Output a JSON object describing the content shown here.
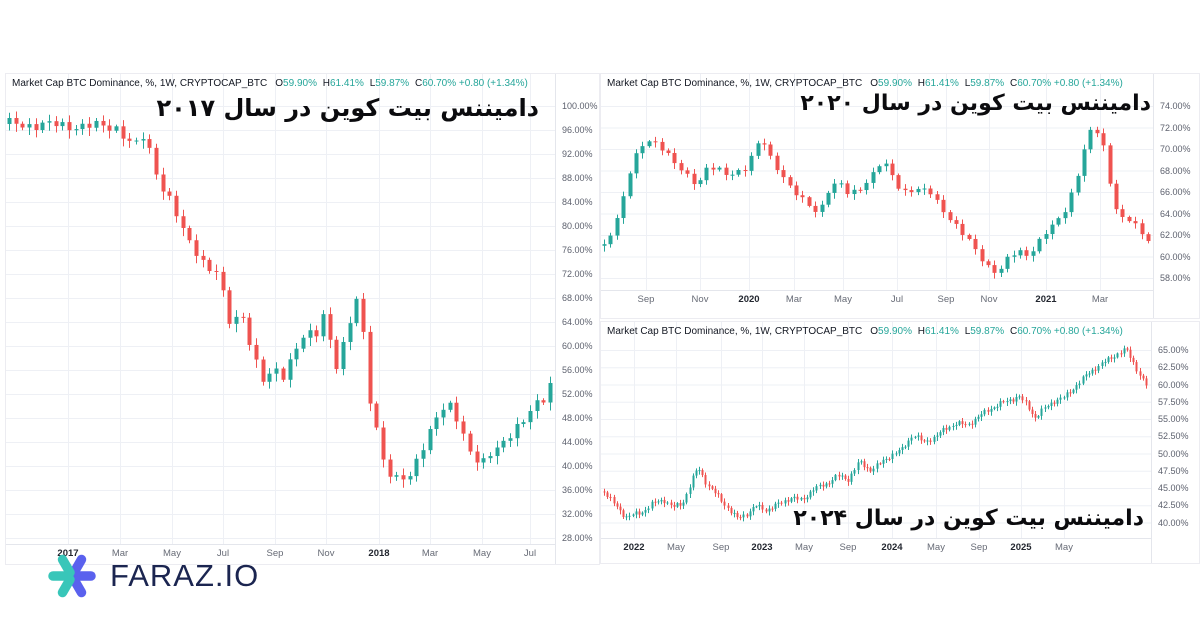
{
  "page": {
    "background": "#ffffff"
  },
  "logo": {
    "text": "FARAZ.IO",
    "icon": "asterisk-logo",
    "teal": "#38c6b9",
    "blue": "#5a61ee",
    "text_color": "#1b2550"
  },
  "colors": {
    "up": "#26a69a",
    "down": "#ef5350",
    "grid": "#eef0f5",
    "axis_text": "#5d616e",
    "header_text": "#131722",
    "title_text": "#0b0b0e"
  },
  "charts": [
    {
      "id": "btc-dominance-2017",
      "title": "دامیننس بیت کوین در سال ۲۰۱۷",
      "header": {
        "symbol": "Market Cap BTC Dominance, %, 1W, CRYPTOCAP_BTC",
        "o_label": "O",
        "o_value": "59.90%",
        "h_label": "H",
        "h_value": "61.41%",
        "l_label": "L",
        "l_value": "59.87%",
        "c_label": "C",
        "c_value": "60.70%",
        "change": "+0.80 (+1.34%)"
      }
    },
    {
      "id": "btc-dominance-2020",
      "title": "دامیننس بیت کوین در سال ۲۰۲۰",
      "header": {
        "symbol": "Market Cap BTC Dominance, %, 1W, CRYPTOCAP_BTC",
        "o_label": "O",
        "o_value": "59.90%",
        "h_label": "H",
        "h_value": "61.41%",
        "l_label": "L",
        "l_value": "59.87%",
        "c_label": "C",
        "c_value": "60.70%",
        "change": "+0.80 (+1.34%)"
      }
    },
    {
      "id": "btc-dominance-2024",
      "title": "دامیننس بیت کوین در سال ۲۰۲۴",
      "header": {
        "symbol": "Market Cap BTC Dominance, %, 1W, CRYPTOCAP_BTC",
        "o_label": "O",
        "o_value": "59.90%",
        "h_label": "H",
        "h_value": "61.41%",
        "l_label": "L",
        "l_value": "59.87%",
        "c_label": "C",
        "c_value": "60.70%",
        "change": "+0.80 (+1.34%)"
      }
    }
  ],
  "chart_data": [
    {
      "type": "candlestick",
      "title": "دامیننس بیت کوین در سال ۲۰۱۷",
      "symbol": "Market Cap BTC Dominance, %, 1W, CRYPTOCAP_BTC",
      "interval": "1W",
      "ohlc_readout": {
        "open": "59.90%",
        "high": "61.41%",
        "low": "59.87%",
        "close": "60.70%",
        "change": "+0.80 (+1.34%)"
      },
      "ylim": [
        28,
        100
      ],
      "y_ticks": [
        100,
        96,
        92,
        88,
        84,
        80,
        76,
        72,
        68,
        64,
        60,
        56,
        52,
        48,
        44,
        40,
        36,
        32,
        28
      ],
      "y_tick_suffix": "%",
      "x_ticks": [
        {
          "label": "2017",
          "t": 0.109,
          "year": true
        },
        {
          "label": "Mar",
          "t": 0.206,
          "year": false
        },
        {
          "label": "May",
          "t": 0.301,
          "year": false
        },
        {
          "label": "Jul",
          "t": 0.396,
          "year": false
        },
        {
          "label": "Sep",
          "t": 0.491,
          "year": false
        },
        {
          "label": "Nov",
          "t": 0.586,
          "year": false
        },
        {
          "label": "2018",
          "t": 0.684,
          "year": true
        },
        {
          "label": "Mar",
          "t": 0.779,
          "year": false
        },
        {
          "label": "May",
          "t": 0.874,
          "year": false
        },
        {
          "label": "Jul",
          "t": 0.963,
          "year": false
        }
      ],
      "n_candles": 82,
      "trend_keypoints": [
        [
          0,
          97
        ],
        [
          0.2,
          96.5
        ],
        [
          0.23,
          93
        ],
        [
          0.25,
          95
        ],
        [
          0.28,
          87
        ],
        [
          0.3,
          84
        ],
        [
          0.32,
          79
        ],
        [
          0.36,
          74
        ],
        [
          0.385,
          72
        ],
        [
          0.41,
          63
        ],
        [
          0.43,
          66
        ],
        [
          0.45,
          59
        ],
        [
          0.465,
          55
        ],
        [
          0.475,
          53
        ],
        [
          0.49,
          57
        ],
        [
          0.5,
          54
        ],
        [
          0.53,
          60
        ],
        [
          0.55,
          62
        ],
        [
          0.565,
          61
        ],
        [
          0.575,
          64
        ],
        [
          0.585,
          66
        ],
        [
          0.595,
          60
        ],
        [
          0.605,
          57
        ],
        [
          0.625,
          62
        ],
        [
          0.64,
          68
        ],
        [
          0.652,
          64
        ],
        [
          0.665,
          52
        ],
        [
          0.68,
          46
        ],
        [
          0.695,
          40
        ],
        [
          0.71,
          37
        ],
        [
          0.725,
          38
        ],
        [
          0.74,
          38
        ],
        [
          0.755,
          42
        ],
        [
          0.775,
          45
        ],
        [
          0.79,
          48
        ],
        [
          0.815,
          50
        ],
        [
          0.83,
          48
        ],
        [
          0.845,
          44
        ],
        [
          0.86,
          41
        ],
        [
          0.875,
          40
        ],
        [
          0.89,
          42
        ],
        [
          0.91,
          44
        ],
        [
          0.93,
          46
        ],
        [
          0.95,
          47
        ],
        [
          0.97,
          50
        ],
        [
          0.985,
          51
        ],
        [
          1,
          54
        ]
      ],
      "up_color": "#26a69a",
      "down_color": "#ef5350",
      "grid": true,
      "legend_position": "top-left"
    },
    {
      "type": "candlestick",
      "title": "دامیننس بیت کوین در سال ۲۰۲۰",
      "symbol": "Market Cap BTC Dominance, %, 1W, CRYPTOCAP_BTC",
      "interval": "1W",
      "ohlc_readout": {
        "open": "59.90%",
        "high": "61.41%",
        "low": "59.87%",
        "close": "60.70%",
        "change": "+0.80 (+1.34%)"
      },
      "ylim": [
        58,
        74
      ],
      "y_ticks": [
        74,
        72,
        70,
        68,
        66,
        64,
        62,
        60,
        58
      ],
      "y_tick_suffix": "%",
      "x_ticks": [
        {
          "label": "Sep",
          "t": 0.078,
          "year": false
        },
        {
          "label": "Nov",
          "t": 0.176,
          "year": false
        },
        {
          "label": "2020",
          "t": 0.266,
          "year": true
        },
        {
          "label": "Mar",
          "t": 0.35,
          "year": false
        },
        {
          "label": "May",
          "t": 0.44,
          "year": false
        },
        {
          "label": "Jul",
          "t": 0.538,
          "year": false
        },
        {
          "label": "Sep",
          "t": 0.629,
          "year": false
        },
        {
          "label": "Nov",
          "t": 0.707,
          "year": false
        },
        {
          "label": "2021",
          "t": 0.812,
          "year": true
        },
        {
          "label": "Mar",
          "t": 0.911,
          "year": false
        }
      ],
      "n_candles": 86,
      "trend_keypoints": [
        [
          0,
          61
        ],
        [
          0.027,
          64
        ],
        [
          0.051,
          68.5
        ],
        [
          0.072,
          70.5
        ],
        [
          0.087,
          71
        ],
        [
          0.109,
          70
        ],
        [
          0.13,
          68.5
        ],
        [
          0.154,
          67.5
        ],
        [
          0.172,
          66.8
        ],
        [
          0.19,
          68.3
        ],
        [
          0.208,
          68
        ],
        [
          0.226,
          67.6
        ],
        [
          0.245,
          68
        ],
        [
          0.263,
          68.3
        ],
        [
          0.281,
          70.3
        ],
        [
          0.293,
          70.6
        ],
        [
          0.308,
          69
        ],
        [
          0.326,
          67.8
        ],
        [
          0.344,
          66.2
        ],
        [
          0.362,
          65.3
        ],
        [
          0.38,
          64.6
        ],
        [
          0.395,
          64.2
        ],
        [
          0.413,
          66.3
        ],
        [
          0.431,
          66.8
        ],
        [
          0.449,
          65.8
        ],
        [
          0.467,
          66.3
        ],
        [
          0.489,
          67.3
        ],
        [
          0.511,
          68.8
        ],
        [
          0.529,
          67.6
        ],
        [
          0.547,
          66.1
        ],
        [
          0.565,
          66.2
        ],
        [
          0.583,
          66.1
        ],
        [
          0.601,
          65.9
        ],
        [
          0.62,
          64.6
        ],
        [
          0.638,
          63.4
        ],
        [
          0.656,
          62.2
        ],
        [
          0.674,
          61.2
        ],
        [
          0.692,
          60
        ],
        [
          0.71,
          58.9
        ],
        [
          0.725,
          58.4
        ],
        [
          0.743,
          59.8
        ],
        [
          0.761,
          60.6
        ],
        [
          0.779,
          60.2
        ],
        [
          0.797,
          61.2
        ],
        [
          0.815,
          62.3
        ],
        [
          0.833,
          63.3
        ],
        [
          0.851,
          64.8
        ],
        [
          0.87,
          67.5
        ],
        [
          0.888,
          71
        ],
        [
          0.902,
          72
        ],
        [
          0.917,
          70.5
        ],
        [
          0.929,
          67
        ],
        [
          0.942,
          64.5
        ],
        [
          0.957,
          63
        ],
        [
          0.971,
          63.5
        ],
        [
          0.986,
          62
        ],
        [
          1,
          61.8
        ]
      ],
      "up_color": "#26a69a",
      "down_color": "#ef5350",
      "grid": true,
      "legend_position": "top-left"
    },
    {
      "type": "candlestick",
      "title": "دامیننس بیت کوین در سال ۲۰۲۴",
      "symbol": "Market Cap BTC Dominance, %, 1W, CRYPTOCAP_BTC",
      "interval": "1W",
      "ohlc_readout": {
        "open": "59.90%",
        "high": "61.41%",
        "low": "59.87%",
        "close": "60.70%",
        "change": "+0.80 (+1.34%)"
      },
      "ylim": [
        40,
        65
      ],
      "y_ticks": [
        65,
        62.5,
        60,
        57.5,
        55,
        52.5,
        50,
        47.5,
        45,
        42.5,
        40
      ],
      "y_tick_suffix": "%",
      "x_ticks": [
        {
          "label": "2022",
          "t": 0.055,
          "year": true
        },
        {
          "label": "May",
          "t": 0.133,
          "year": false
        },
        {
          "label": "Sep",
          "t": 0.215,
          "year": false
        },
        {
          "label": "2023",
          "t": 0.291,
          "year": true
        },
        {
          "label": "May",
          "t": 0.369,
          "year": false
        },
        {
          "label": "Sep",
          "t": 0.451,
          "year": false
        },
        {
          "label": "2024",
          "t": 0.531,
          "year": true
        },
        {
          "label": "May",
          "t": 0.613,
          "year": false
        },
        {
          "label": "Sep",
          "t": 0.691,
          "year": false
        },
        {
          "label": "2025",
          "t": 0.769,
          "year": true
        },
        {
          "label": "May",
          "t": 0.849,
          "year": false
        }
      ],
      "n_candles": 172,
      "trend_keypoints": [
        [
          0,
          44.5
        ],
        [
          0.02,
          42.5
        ],
        [
          0.04,
          40.8
        ],
        [
          0.07,
          41.5
        ],
        [
          0.09,
          42.8
        ],
        [
          0.11,
          43.3
        ],
        [
          0.127,
          42.2
        ],
        [
          0.145,
          42.8
        ],
        [
          0.164,
          46.5
        ],
        [
          0.173,
          48
        ],
        [
          0.19,
          45.5
        ],
        [
          0.21,
          43.8
        ],
        [
          0.227,
          42.2
        ],
        [
          0.245,
          40.6
        ],
        [
          0.264,
          41.3
        ],
        [
          0.28,
          42.4
        ],
        [
          0.3,
          41.8
        ],
        [
          0.32,
          42.6
        ],
        [
          0.345,
          43.6
        ],
        [
          0.365,
          43.2
        ],
        [
          0.385,
          44.8
        ],
        [
          0.41,
          45.6
        ],
        [
          0.43,
          46.8
        ],
        [
          0.45,
          46.2
        ],
        [
          0.47,
          48.8
        ],
        [
          0.49,
          47.6
        ],
        [
          0.51,
          48.6
        ],
        [
          0.53,
          49.8
        ],
        [
          0.55,
          50.6
        ],
        [
          0.57,
          52.8
        ],
        [
          0.59,
          51.6
        ],
        [
          0.61,
          52.4
        ],
        [
          0.63,
          53.6
        ],
        [
          0.65,
          54.4
        ],
        [
          0.67,
          54.1
        ],
        [
          0.69,
          55.3
        ],
        [
          0.71,
          56.4
        ],
        [
          0.73,
          57.2
        ],
        [
          0.75,
          57.8
        ],
        [
          0.765,
          58.3
        ],
        [
          0.78,
          57
        ],
        [
          0.795,
          55.2
        ],
        [
          0.81,
          56.4
        ],
        [
          0.83,
          57.6
        ],
        [
          0.85,
          58.2
        ],
        [
          0.87,
          59.8
        ],
        [
          0.89,
          61.4
        ],
        [
          0.91,
          62.6
        ],
        [
          0.93,
          63.6
        ],
        [
          0.95,
          64.6
        ],
        [
          0.963,
          65.1
        ],
        [
          0.975,
          63.4
        ],
        [
          0.988,
          61.4
        ],
        [
          1,
          59.9
        ]
      ],
      "up_color": "#26a69a",
      "down_color": "#ef5350",
      "grid": true,
      "legend_position": "top-left"
    }
  ]
}
